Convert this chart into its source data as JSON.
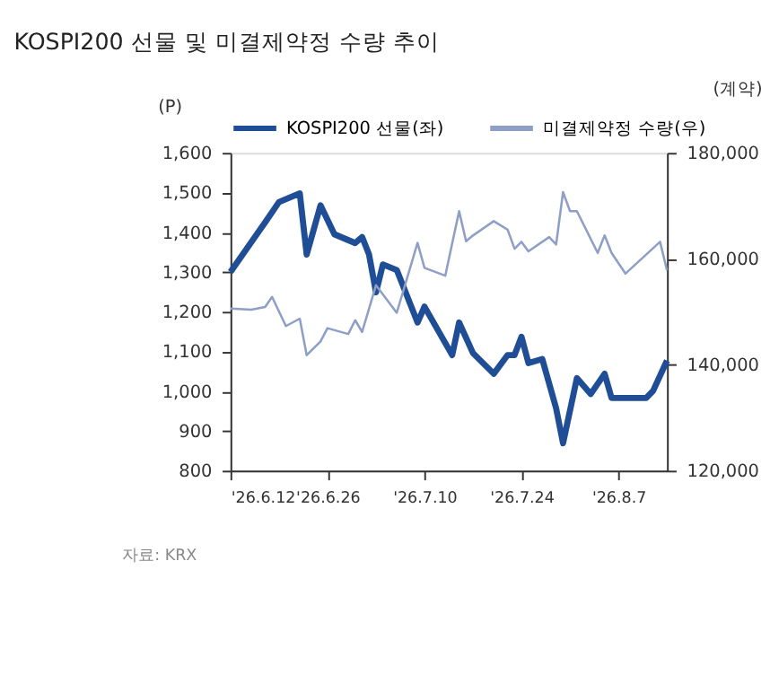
{
  "chart_data": {
    "type": "line",
    "title": "KOSPI200 선물 및 미결제약정 수량 추이",
    "ylabel": "(P)",
    "y2label": "(계약)",
    "annotations": [
      "자료: KRX"
    ],
    "xlim": [
      "2026-06-12",
      "2026-08-14"
    ],
    "xticks": [
      {
        "value": "2026-06-12",
        "label": "'26.6.12"
      },
      {
        "value": "2026-06-26",
        "label": "'26.6.26"
      },
      {
        "value": "2026-07-10",
        "label": "'26.7.10"
      },
      {
        "value": "2026-07-24",
        "label": "'26.7.24"
      },
      {
        "value": "2026-08-07",
        "label": "'26.8.7"
      }
    ],
    "ylim": [
      800,
      1600
    ],
    "yticks": [
      {
        "value": 800,
        "label": "800"
      },
      {
        "value": 900,
        "label": "900"
      },
      {
        "value": 1000,
        "label": "1,000"
      },
      {
        "value": 1100,
        "label": "1,100"
      },
      {
        "value": 1200,
        "label": "1,200"
      },
      {
        "value": 1300,
        "label": "1,300"
      },
      {
        "value": 1400,
        "label": "1,400"
      },
      {
        "value": 1500,
        "label": "1,500"
      },
      {
        "value": 1600,
        "label": "1,600"
      }
    ],
    "y2lim": [
      120000,
      180000
    ],
    "y2ticks": [
      {
        "value": 120000,
        "label": "120,000"
      },
      {
        "value": 140000,
        "label": "140,000"
      },
      {
        "value": 160000,
        "label": "160,000"
      },
      {
        "value": 180000,
        "label": "180,000"
      }
    ],
    "grid": false,
    "legend": "top",
    "marker": "none",
    "line_style": "solid",
    "series": [
      {
        "name": "KOSPI200 선물(좌)",
        "color": "#1f4e96",
        "x": [
          "2026-06-12",
          "2026-06-17",
          "2026-06-19",
          "2026-06-22",
          "2026-06-23",
          "2026-06-25",
          "2026-06-27",
          "2026-06-30",
          "2026-07-01",
          "2026-07-02",
          "2026-07-03",
          "2026-07-04",
          "2026-07-06",
          "2026-07-09",
          "2026-07-10",
          "2026-07-14",
          "2026-07-15",
          "2026-07-17",
          "2026-07-20",
          "2026-07-22",
          "2026-07-23",
          "2026-07-24",
          "2026-07-25",
          "2026-07-27",
          "2026-07-29",
          "2026-07-30",
          "2026-08-01",
          "2026-08-03",
          "2026-08-05",
          "2026-08-06",
          "2026-08-11",
          "2026-08-12",
          "2026-08-14"
        ],
        "values": [
          1300,
          1425,
          1476,
          1498,
          1344,
          1468,
          1395,
          1373,
          1388,
          1344,
          1249,
          1319,
          1305,
          1173,
          1213,
          1091,
          1173,
          1096,
          1044,
          1091,
          1091,
          1137,
          1071,
          1081,
          957,
          869,
          1033,
          993,
          1044,
          983,
          983,
          1001,
          1077
        ]
      },
      {
        "name": "미결제약정 수량(우)",
        "color": "#8e9fc7",
        "axis": "y2",
        "x": [
          "2026-06-12",
          "2026-06-15",
          "2026-06-17",
          "2026-06-18",
          "2026-06-20",
          "2026-06-22",
          "2026-06-23",
          "2026-06-25",
          "2026-06-26",
          "2026-06-29",
          "2026-06-30",
          "2026-07-01",
          "2026-07-03",
          "2026-07-06",
          "2026-07-09",
          "2026-07-10",
          "2026-07-13",
          "2026-07-15",
          "2026-07-16",
          "2026-07-17",
          "2026-07-20",
          "2026-07-22",
          "2026-07-23",
          "2026-07-24",
          "2026-07-25",
          "2026-07-28",
          "2026-07-29",
          "2026-07-30",
          "2026-07-31",
          "2026-08-01",
          "2026-08-04",
          "2026-08-05",
          "2026-08-06",
          "2026-08-08",
          "2026-08-13",
          "2026-08-14"
        ],
        "values": [
          150600,
          150400,
          150900,
          152800,
          147300,
          148700,
          141800,
          144400,
          146900,
          145800,
          148400,
          146200,
          155000,
          149800,
          163000,
          158300,
          156800,
          169000,
          163300,
          164400,
          167100,
          165500,
          161900,
          163200,
          161400,
          164100,
          162700,
          172600,
          169000,
          169000,
          161100,
          164400,
          161100,
          157200,
          163200,
          157800
        ]
      }
    ]
  }
}
